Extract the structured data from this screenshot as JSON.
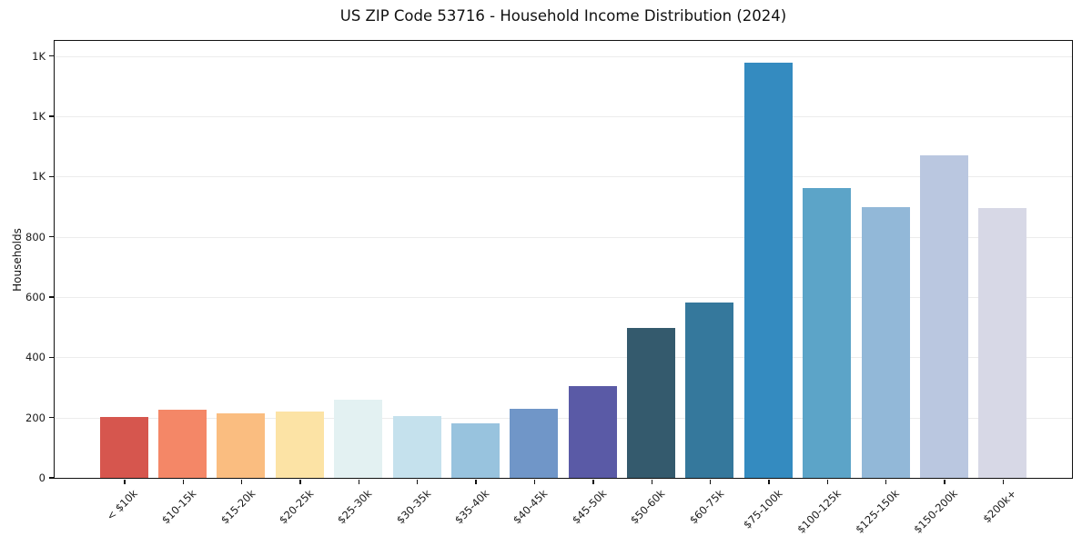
{
  "figure": {
    "title": "US ZIP Code 53716 - Household Income Distribution (2024)",
    "y_axis_label": "Households"
  },
  "chart_data": {
    "type": "bar",
    "title": "US ZIP Code 53716 - Household Income Distribution (2024)",
    "xlabel": "",
    "ylabel": "Households",
    "categories": [
      "< $10k",
      "$10-15k",
      "$15-20k",
      "$20-25k",
      "$25-30k",
      "$30-35k",
      "$35-40k",
      "$40-45k",
      "$45-50k",
      "$50-60k",
      "$60-75k",
      "$75-100k",
      "$100-125k",
      "$125-150k",
      "$150-200k",
      "$200k+"
    ],
    "values": [
      203,
      227,
      214,
      219,
      259,
      206,
      180,
      230,
      304,
      497,
      581,
      1378,
      961,
      898,
      1070,
      894
    ],
    "bar_colors": [
      "#d6564e",
      "#f48767",
      "#fabd80",
      "#fce3a5",
      "#e3f1f2",
      "#c5e1ed",
      "#98c3de",
      "#7096c8",
      "#5a5aa6",
      "#345a6d",
      "#35789c",
      "#348bc0",
      "#5ca4c8",
      "#92b8d8",
      "#bac7e0",
      "#d7d8e6"
    ],
    "ylim": [
      0,
      1450
    ],
    "yticks": {
      "values": [
        0,
        200,
        400,
        600,
        800,
        1000,
        1200,
        1400
      ],
      "labels": [
        "0",
        "200",
        "400",
        "600",
        "800",
        "1K",
        "1K",
        "1K"
      ]
    },
    "grid": "horizontal",
    "grid_color": "#ececec",
    "axis_color": "#111111",
    "legend": "none"
  }
}
